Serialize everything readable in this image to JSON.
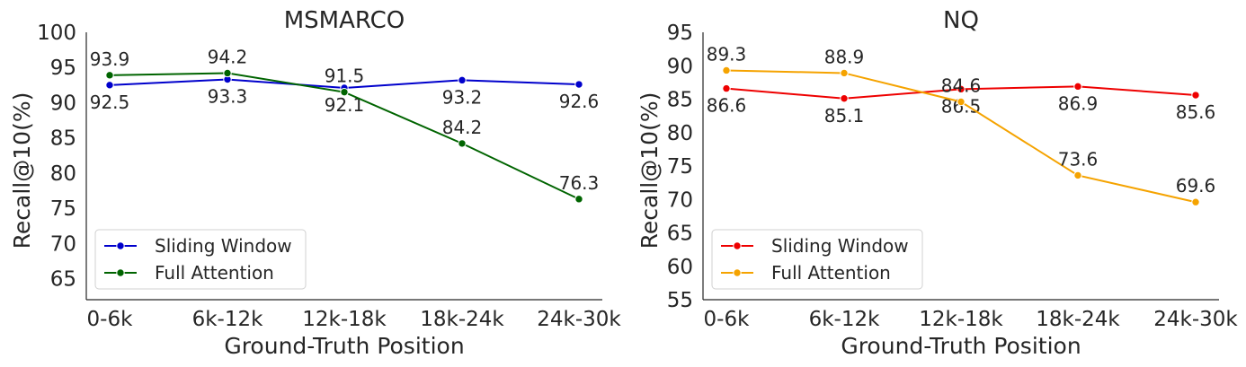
{
  "chart_data": [
    {
      "type": "line",
      "title": "MSMARCO",
      "xlabel": "Ground-Truth Position",
      "ylabel": "Recall@10(%)",
      "categories": [
        "0-6k",
        "6k-12k",
        "12k-18k",
        "18k-24k",
        "24k-30k"
      ],
      "ylim": [
        62,
        100
      ],
      "yticks": [
        65,
        70,
        75,
        80,
        85,
        90,
        95,
        100
      ],
      "grid": false,
      "legend_loc": "lower-left",
      "series": [
        {
          "name": "Sliding Window",
          "color": "#0000cc",
          "values": [
            92.5,
            93.3,
            92.1,
            93.2,
            92.6
          ],
          "label_pos": [
            "below",
            "below",
            "below",
            "below",
            "below"
          ]
        },
        {
          "name": "Full Attention",
          "color": "#006400",
          "values": [
            93.9,
            94.2,
            91.5,
            84.2,
            76.3
          ],
          "label_pos": [
            "above",
            "above",
            "above",
            "above",
            "above"
          ]
        }
      ]
    },
    {
      "type": "line",
      "title": "NQ",
      "xlabel": "Ground-Truth Position",
      "ylabel": "Recall@10(%)",
      "categories": [
        "0-6k",
        "6k-12k",
        "12k-18k",
        "18k-24k",
        "24k-30k"
      ],
      "ylim": [
        55,
        95
      ],
      "yticks": [
        55,
        60,
        65,
        70,
        75,
        80,
        85,
        90,
        95
      ],
      "grid": false,
      "legend_loc": "lower-left",
      "series": [
        {
          "name": "Sliding Window",
          "color": "#ee0000",
          "values": [
            86.6,
            85.1,
            86.5,
            86.9,
            85.6
          ],
          "label_pos": [
            "below",
            "below",
            "below",
            "below",
            "below"
          ]
        },
        {
          "name": "Full Attention",
          "color": "#f5a300",
          "values": [
            89.3,
            88.9,
            84.6,
            73.6,
            69.6
          ],
          "label_pos": [
            "above",
            "above",
            "above",
            "above",
            "above"
          ]
        }
      ]
    }
  ]
}
